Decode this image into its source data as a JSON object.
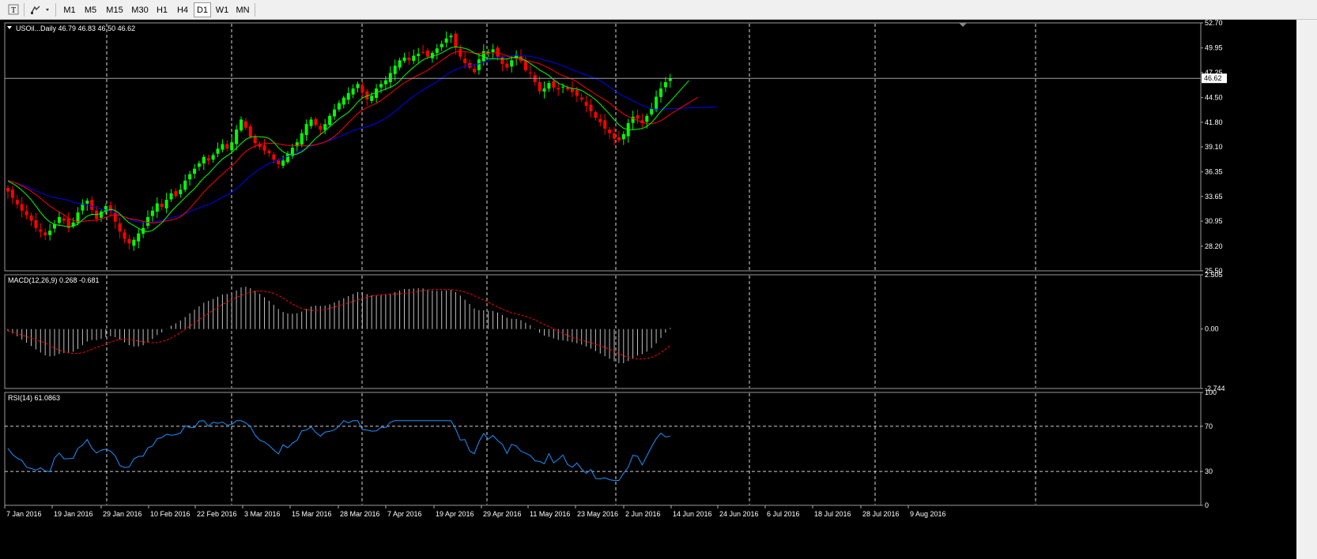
{
  "toolbar": {
    "timeframes": [
      "M1",
      "M5",
      "M15",
      "M30",
      "H1",
      "H4",
      "D1",
      "W1",
      "MN"
    ],
    "active_timeframe": "D1"
  },
  "chart": {
    "symbol_header": "USOil...Daily  46.79 46.83 46.50 46.62",
    "current_price": "46.62",
    "colors": {
      "background": "#000000",
      "bull": "#00ff00",
      "bear": "#ff0000",
      "ma_fast": "#00ff00",
      "ma_mid": "#ff0000",
      "ma_slow": "#0000ff",
      "macd_hist": "#c0c0c0",
      "macd_signal": "#ff0000",
      "rsi": "#1e90ff",
      "grid": "#ffffff"
    }
  },
  "macd": {
    "header": "MACD(12,26,9) 0.268 -0.681"
  },
  "rsi": {
    "header": "RSI(14) 61.0863"
  },
  "chart_data": [
    {
      "type": "candlestick",
      "title": "USOil...Daily",
      "ylim": [
        25.5,
        52.7
      ],
      "y_ticks": [
        "52.70",
        "49.95",
        "47.25",
        "44.50",
        "41.80",
        "39.10",
        "36.35",
        "33.65",
        "30.95",
        "28.20",
        "25.50"
      ],
      "x_tick_labels": [
        "7 Jan 2016",
        "19 Jan 2016",
        "29 Jan 2016",
        "10 Feb 2016",
        "22 Feb 2016",
        "3 Mar 2016",
        "15 Mar 2016",
        "28 Mar 2016",
        "7 Apr 2016",
        "19 Apr 2016",
        "29 Apr 2016",
        "11 May 2016",
        "23 May 2016",
        "2 Jun 2016",
        "14 Jun 2016",
        "24 Jun 2016",
        "6 Jul 2016",
        "18 Jul 2016",
        "28 Jul 2016",
        "9 Aug 2016"
      ],
      "close_series": [
        34.2,
        33.5,
        32.8,
        32.1,
        31.6,
        31.0,
        30.2,
        29.8,
        29.4,
        29.9,
        30.6,
        31.4,
        31.0,
        30.2,
        30.8,
        31.9,
        32.9,
        33.2,
        32.2,
        31.2,
        32.0,
        32.6,
        32.0,
        30.9,
        29.8,
        29.0,
        28.5,
        28.9,
        29.6,
        30.2,
        31.4,
        32.1,
        32.9,
        32.5,
        33.3,
        34.0,
        33.7,
        34.4,
        35.4,
        36.1,
        36.7,
        37.3,
        38.0,
        37.6,
        38.2,
        38.9,
        39.4,
        38.9,
        39.6,
        41.0,
        42.1,
        41.2,
        40.2,
        39.5,
        39.1,
        38.7,
        38.4,
        37.7,
        37.2,
        37.6,
        38.3,
        39.0,
        39.6,
        40.6,
        41.6,
        42.1,
        41.5,
        41.0,
        41.6,
        42.5,
        43.2,
        43.9,
        44.5,
        45.0,
        45.5,
        46.0,
        45.1,
        44.3,
        44.7,
        45.5,
        46.0,
        46.4,
        47.2,
        48.0,
        48.6,
        48.9,
        48.6,
        49.1,
        49.3,
        49.5,
        49.0,
        49.4,
        49.9,
        50.4,
        51.0,
        51.3,
        50.0,
        49.0,
        48.3,
        47.8,
        47.3,
        48.7,
        49.6,
        49.5,
        49.8,
        49.0,
        48.2,
        47.8,
        48.6,
        49.2,
        48.5,
        47.5,
        47.2,
        46.2,
        45.2,
        45.5,
        46.1,
        45.6,
        45.4,
        45.7,
        45.4,
        45.1,
        44.7,
        44.3,
        43.6,
        43.0,
        42.3,
        41.8,
        41.1,
        40.6,
        40.0,
        39.8,
        40.5,
        41.7,
        42.4,
        42.2,
        41.7,
        42.5,
        43.3,
        44.6,
        45.5,
        46.2,
        46.62
      ],
      "series": [
        {
          "name": "Bullish candle",
          "color": "#00ff00"
        },
        {
          "name": "Bearish candle",
          "color": "#ff0000"
        }
      ]
    },
    {
      "type": "bar",
      "title": "MACD(12,26,9) 0.268 -0.681",
      "ylim": [
        -2.744,
        2.505
      ],
      "y_ticks": [
        "2.505",
        "0.00",
        "-2.744"
      ],
      "last_values": {
        "macd": 0.268,
        "signal": -0.681
      }
    },
    {
      "type": "line",
      "title": "RSI(14) 61.0863",
      "ylim": [
        0,
        100
      ],
      "y_ticks": [
        "100",
        "70",
        "30",
        "0"
      ],
      "levels": [
        70,
        30
      ],
      "last_value": 61.0863
    }
  ]
}
